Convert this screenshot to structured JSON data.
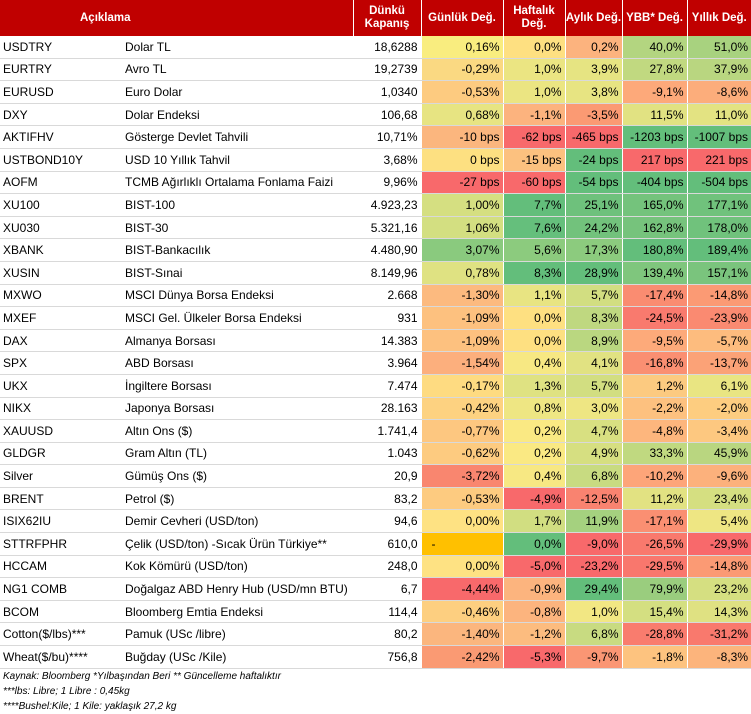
{
  "headers": {
    "desc": "Açıklama",
    "close": "Dünkü Kapanış",
    "daily": "Günlük Değ.",
    "weekly": "Haftalık Değ.",
    "monthly": "Aylık Değ.",
    "ytd": "YBB* Değ.",
    "yearly": "Yıllık Değ."
  },
  "rows": [
    {
      "code": "USDTRY",
      "desc": "Dolar TL",
      "close": "18,6288",
      "daily": "0,16%",
      "weekly": "0,0%",
      "monthly": "0,2%",
      "ytd": "40,0%",
      "yearly": "51,0%"
    },
    {
      "code": "EURTRY",
      "desc": "Avro TL",
      "close": "19,2739",
      "daily": "-0,29%",
      "weekly": "1,0%",
      "monthly": "3,9%",
      "ytd": "27,8%",
      "yearly": "37,9%"
    },
    {
      "code": "EURUSD",
      "desc": "Euro Dolar",
      "close": "1,0340",
      "daily": "-0,53%",
      "weekly": "1,0%",
      "monthly": "3,8%",
      "ytd": "-9,1%",
      "yearly": "-8,6%"
    },
    {
      "code": "DXY",
      "desc": "Dolar Endeksi",
      "close": "106,68",
      "daily": "0,68%",
      "weekly": "-1,1%",
      "monthly": "-3,5%",
      "ytd": "11,5%",
      "yearly": "11,0%"
    },
    {
      "code": "AKTIFHV",
      "desc": "Gösterge Devlet Tahvili",
      "close": "10,71%",
      "daily": "-10 bps",
      "weekly": "-62 bps",
      "monthly": "-465 bps",
      "ytd": "-1203 bps",
      "yearly": "-1007 bps"
    },
    {
      "code": "USTBOND10Y",
      "desc": "USD 10 Yıllık Tahvil",
      "close": "3,68%",
      "daily": "0 bps",
      "weekly": "-15 bps",
      "monthly": "-24 bps",
      "ytd": "217 bps",
      "yearly": "221 bps"
    },
    {
      "code": "AOFM",
      "desc": "TCMB Ağırlıklı Ortalama Fonlama Faizi",
      "close": "9,96%",
      "daily": "-27 bps",
      "weekly": "-60 bps",
      "monthly": "-54 bps",
      "ytd": "-404 bps",
      "yearly": "-504 bps"
    },
    {
      "code": "XU100",
      "desc": "BIST-100",
      "close": "4.923,23",
      "daily": "1,00%",
      "weekly": "7,7%",
      "monthly": "25,1%",
      "ytd": "165,0%",
      "yearly": "177,1%"
    },
    {
      "code": "XU030",
      "desc": "BIST-30",
      "close": "5.321,16",
      "daily": "1,06%",
      "weekly": "7,6%",
      "monthly": "24,2%",
      "ytd": "162,8%",
      "yearly": "178,0%"
    },
    {
      "code": "XBANK",
      "desc": "BIST-Bankacılık",
      "close": "4.480,90",
      "daily": "3,07%",
      "weekly": "5,6%",
      "monthly": "17,3%",
      "ytd": "180,8%",
      "yearly": "189,4%"
    },
    {
      "code": "XUSIN",
      "desc": "BIST-Sınai",
      "close": "8.149,96",
      "daily": "0,78%",
      "weekly": "8,3%",
      "monthly": "28,9%",
      "ytd": "139,4%",
      "yearly": "157,1%"
    },
    {
      "code": "MXWO",
      "desc": "MSCI Dünya Borsa Endeksi",
      "close": "2.668",
      "daily": "-1,30%",
      "weekly": "1,1%",
      "monthly": "5,7%",
      "ytd": "-17,4%",
      "yearly": "-14,8%"
    },
    {
      "code": "MXEF",
      "desc": "MSCI Gel. Ülkeler Borsa Endeksi",
      "close": "931",
      "daily": "-1,09%",
      "weekly": "0,0%",
      "monthly": "8,3%",
      "ytd": "-24,5%",
      "yearly": "-23,9%"
    },
    {
      "code": "DAX",
      "desc": "Almanya Borsası",
      "close": "14.383",
      "daily": "-1,09%",
      "weekly": "0,0%",
      "monthly": "8,9%",
      "ytd": "-9,5%",
      "yearly": "-5,7%"
    },
    {
      "code": "SPX",
      "desc": "ABD Borsası",
      "close": "3.964",
      "daily": "-1,54%",
      "weekly": "0,4%",
      "monthly": "4,1%",
      "ytd": "-16,8%",
      "yearly": "-13,7%"
    },
    {
      "code": "UKX",
      "desc": "İngiltere Borsası",
      "close": "7.474",
      "daily": "-0,17%",
      "weekly": "1,3%",
      "monthly": "5,7%",
      "ytd": "1,2%",
      "yearly": "6,1%"
    },
    {
      "code": "NIKX",
      "desc": "Japonya Borsası",
      "close": "28.163",
      "daily": "-0,42%",
      "weekly": "0,8%",
      "monthly": "3,0%",
      "ytd": "-2,2%",
      "yearly": "-2,0%"
    },
    {
      "code": "XAUUSD",
      "desc": "Altın Ons ($)",
      "close": "1.741,4",
      "daily": "-0,77%",
      "weekly": "0,2%",
      "monthly": "4,7%",
      "ytd": "-4,8%",
      "yearly": "-3,4%"
    },
    {
      "code": "GLDGR",
      "desc": "Gram Altın (TL)",
      "close": "1.043",
      "daily": "-0,62%",
      "weekly": "0,2%",
      "monthly": "4,9%",
      "ytd": "33,3%",
      "yearly": "45,9%"
    },
    {
      "code": "Silver",
      "desc": "Gümüş Ons ($)",
      "close": "20,9",
      "daily": "-3,72%",
      "weekly": "0,4%",
      "monthly": "6,8%",
      "ytd": "-10,2%",
      "yearly": "-9,6%"
    },
    {
      "code": "BRENT",
      "desc": "Petrol ($)",
      "close": "83,2",
      "daily": "-0,53%",
      "weekly": "-4,9%",
      "monthly": "-12,5%",
      "ytd": "11,2%",
      "yearly": "23,4%"
    },
    {
      "code": "ISIX62IU",
      "desc": "Demir Cevheri (USD/ton)",
      "close": "94,6",
      "daily": "0,00%",
      "weekly": "1,7%",
      "monthly": "11,9%",
      "ytd": "-17,1%",
      "yearly": "5,4%"
    },
    {
      "code": "STTRFPHR",
      "desc": "Çelik (USD/ton) -Sıcak Ürün Türkiye**",
      "close": "610,0",
      "daily": "-",
      "weekly": "0,0%",
      "monthly": "-9,0%",
      "ytd": "-26,5%",
      "yearly": "-29,9%"
    },
    {
      "code": "HCCAM",
      "desc": "Kok Kömürü (USD/ton)",
      "close": "248,0",
      "daily": "0,00%",
      "weekly": "-5,0%",
      "monthly": "-23,2%",
      "ytd": "-29,5%",
      "yearly": "-14,8%"
    },
    {
      "code": "NG1 COMB",
      "desc": "Doğalgaz ABD Henry Hub (USD/mn BTU)",
      "close": "6,7",
      "daily": "-4,44%",
      "weekly": "-0,9%",
      "monthly": "29,4%",
      "ytd": "79,9%",
      "yearly": "23,2%"
    },
    {
      "code": "BCOM",
      "desc": "Bloomberg Emtia Endeksi",
      "close": "114,4",
      "daily": "-0,46%",
      "weekly": "-0,8%",
      "monthly": "1,0%",
      "ytd": "15,4%",
      "yearly": "14,3%"
    },
    {
      "code": "Cotton($/lbs)***",
      "desc": "Pamuk (USc /libre)",
      "close": "80,2",
      "daily": "-1,40%",
      "weekly": "-1,2%",
      "monthly": "6,8%",
      "ytd": "-28,8%",
      "yearly": "-31,2%"
    },
    {
      "code": "Wheat($/bu)****",
      "desc": "Buğday (USc /Kile)",
      "close": "756,8",
      "daily": "-2,42%",
      "weekly": "-5,3%",
      "monthly": "-9,7%",
      "ytd": "-1,8%",
      "yearly": "-8,3%"
    }
  ],
  "colors": {
    "header_bg": "#c00000",
    "daily": [
      "#f9ed7f",
      "#fad982",
      "#fdcb80",
      "#e7e482",
      "#fbb67e",
      "#fde081",
      "#f8696b",
      "#d5df81",
      "#d3df81",
      "#8aca7e",
      "#dfe282",
      "#fcba7f",
      "#fdc17f",
      "#fdc17f",
      "#fcaf7d",
      "#fedb81",
      "#fdd281",
      "#fdc780",
      "#fdcb80",
      "#f9866f",
      "#fdcb80",
      "#fee283",
      "#ffc000",
      "#fee283",
      "#f8696b",
      "#fdcf80",
      "#fbb67e",
      "#fa9a73"
    ],
    "weekly": [
      "#fee081",
      "#ebe582",
      "#ebe582",
      "#fcb37e",
      "#f8696b",
      "#fcc17f",
      "#f8696b",
      "#63be7b",
      "#65bf7c",
      "#8ccb7e",
      "#63be7b",
      "#e8e482",
      "#fee081",
      "#fee081",
      "#f7e883",
      "#dfe282",
      "#eee683",
      "#fae983",
      "#fae983",
      "#f7e883",
      "#f8696b",
      "#d1de81",
      "#63be7b",
      "#f8696b",
      "#fcb47e",
      "#fcb47e",
      "#fcbc7f",
      "#f8696b"
    ],
    "monthly": [
      "#fcb37e",
      "#e6e482",
      "#e7e482",
      "#fb9a73",
      "#f8696b",
      "#63be7b",
      "#63be7b",
      "#6ec17c",
      "#72c27c",
      "#8ccb7e",
      "#63be7b",
      "#d2de81",
      "#bfd880",
      "#bad780",
      "#e1e282",
      "#d2de81",
      "#eee683",
      "#d8e081",
      "#d6df81",
      "#c8db81",
      "#f98370",
      "#a5d17f",
      "#f8696b",
      "#f8696b",
      "#63be7b",
      "#f2e783",
      "#c8db81",
      "#fa9674"
    ],
    "ytd": [
      "#b3d580",
      "#c1d980",
      "#fda97a",
      "#e1e282",
      "#63be7b",
      "#f8696b",
      "#63be7b",
      "#74c37c",
      "#76c37c",
      "#63be7b",
      "#7fc67d",
      "#fa8c71",
      "#f97a6e",
      "#fdaa7a",
      "#fa8f72",
      "#fcca80",
      "#fdc17f",
      "#fdb67d",
      "#c0d980",
      "#fda579",
      "#e2e282",
      "#fa8f72",
      "#f9796d",
      "#f9776d",
      "#9acd7e",
      "#d4df81",
      "#f97c6e",
      "#fdc37f"
    ],
    "yearly": [
      "#a8d27f",
      "#b9d680",
      "#fcad7b",
      "#e3e382",
      "#63be7b",
      "#f8696b",
      "#63be7b",
      "#70c27c",
      "#70c27c",
      "#63be7b",
      "#7ac47d",
      "#fb9a74",
      "#fa8a71",
      "#fdbc7e",
      "#fba277",
      "#e9e582",
      "#fdcd80",
      "#fdc880",
      "#b9d680",
      "#fcb17c",
      "#d5df81",
      "#eee683",
      "#f8696b",
      "#fb9a74",
      "#d5df81",
      "#dfe182",
      "#f9796d",
      "#fcb47c"
    ]
  },
  "notes": [
    "Kaynak: Bloomberg *Yılbaşından Beri  ** Güncelleme haftalıktır",
    "***lbs: Libre; 1 Libre : 0,45kg",
    "****Bushel:Kile; 1 Kile: yaklaşık 27,2 kg"
  ]
}
